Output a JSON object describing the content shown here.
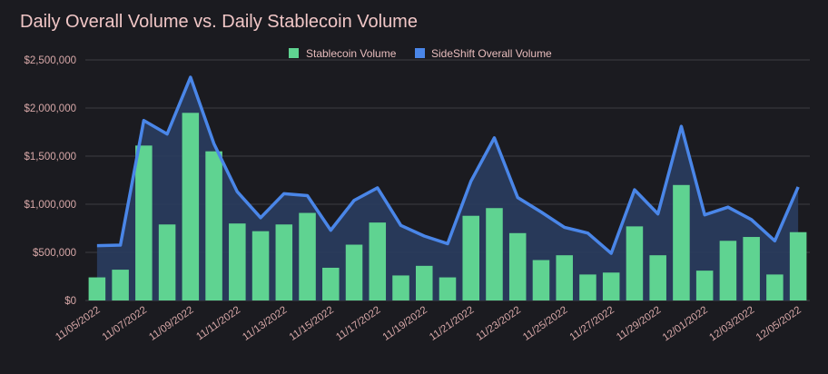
{
  "colors": {
    "background": "#1b1b20",
    "title": "#f0c6c6",
    "text": "#d8a8a8",
    "grid": "#3c3c42",
    "stablecoin": "#5fd391",
    "sideshift_line": "#4a86e8",
    "sideshift_area": "#2a3d5f"
  },
  "chart_data": {
    "type": "bar",
    "title": "Daily Overall Volume vs. Daily Stablecoin Volume",
    "xlabel": "",
    "ylabel": "",
    "ylim": [
      0,
      2500000
    ],
    "yticks": [
      0,
      500000,
      1000000,
      1500000,
      2000000,
      2500000
    ],
    "ytick_labels": [
      "$0",
      "$500,000",
      "$1,000,000",
      "$1,500,000",
      "$2,000,000",
      "$2,500,000"
    ],
    "legend_position": "top-center",
    "categories": [
      "11/05/2022",
      "11/06/2022",
      "11/07/2022",
      "11/08/2022",
      "11/09/2022",
      "11/10/2022",
      "11/11/2022",
      "11/12/2022",
      "11/13/2022",
      "11/14/2022",
      "11/15/2022",
      "11/16/2022",
      "11/17/2022",
      "11/18/2022",
      "11/19/2022",
      "11/20/2022",
      "11/21/2022",
      "11/22/2022",
      "11/23/2022",
      "11/24/2022",
      "11/25/2022",
      "11/26/2022",
      "11/27/2022",
      "11/28/2022",
      "11/29/2022",
      "11/30/2022",
      "12/01/2022",
      "12/02/2022",
      "12/03/2022",
      "12/04/2022",
      "12/05/2022"
    ],
    "xtick_labels": [
      "11/05/2022",
      "11/07/2022",
      "11/09/2022",
      "11/11/2022",
      "11/13/2022",
      "11/15/2022",
      "11/17/2022",
      "11/19/2022",
      "11/21/2022",
      "11/23/2022",
      "11/25/2022",
      "11/27/2022",
      "11/29/2022",
      "12/01/2022",
      "12/03/2022",
      "12/05/2022"
    ],
    "series": [
      {
        "name": "Stablecoin Volume",
        "type": "bar",
        "values": [
          240000,
          320000,
          1610000,
          790000,
          1950000,
          1550000,
          800000,
          720000,
          790000,
          910000,
          340000,
          580000,
          810000,
          260000,
          360000,
          240000,
          880000,
          960000,
          700000,
          420000,
          470000,
          270000,
          290000,
          770000,
          470000,
          1200000,
          310000,
          620000,
          660000,
          270000,
          710000
        ]
      },
      {
        "name": "SideShift Overall Volume",
        "type": "area-line",
        "values": [
          570000,
          575000,
          1870000,
          1730000,
          2320000,
          1630000,
          1130000,
          860000,
          1110000,
          1090000,
          730000,
          1040000,
          1170000,
          780000,
          670000,
          590000,
          1240000,
          1690000,
          1070000,
          920000,
          760000,
          700000,
          490000,
          1150000,
          900000,
          1810000,
          890000,
          970000,
          840000,
          620000,
          1180000
        ]
      }
    ]
  }
}
